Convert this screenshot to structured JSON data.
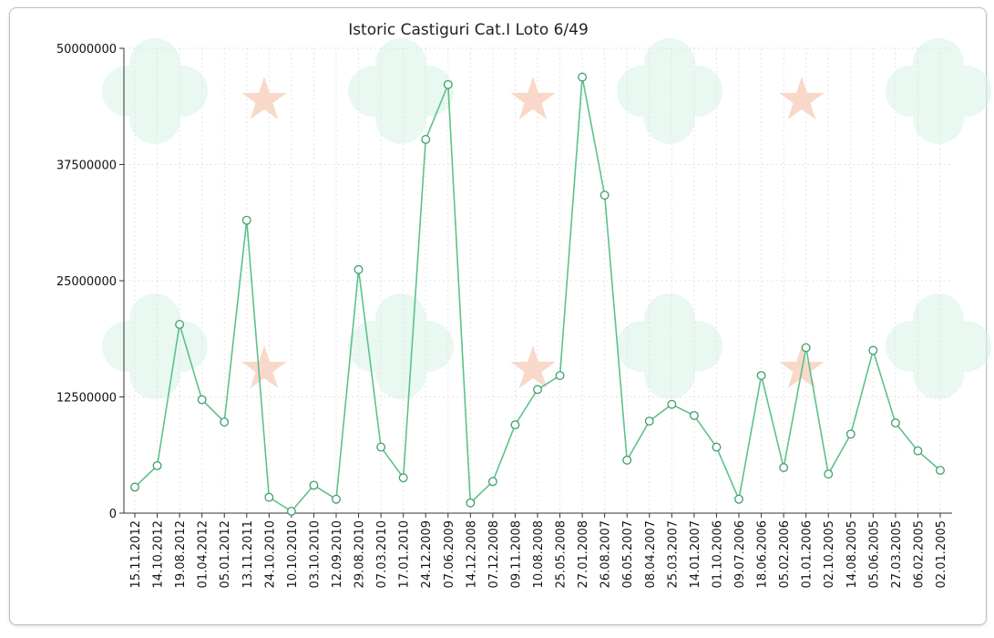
{
  "chart_data": {
    "type": "line",
    "title": "Istoric Castiguri Cat.I Loto 6/49",
    "xlabel": "",
    "ylabel": "",
    "ylim": [
      0,
      50000000
    ],
    "yticks": [
      "0",
      "12500000",
      "25000000",
      "37500000",
      "50000000"
    ],
    "grid": true,
    "colors": {
      "line": "#5cc28a",
      "marker": "#3f9f6a",
      "axis": "#333333",
      "grid": "#e3e3e3",
      "decor_flower": "#d8f3e6",
      "decor_star": "#f6c3ae"
    },
    "series": [
      {
        "values": [
          2800000,
          5100000,
          20300000,
          12200000,
          9800000,
          31500000,
          1700000,
          200000,
          3000000,
          1500000,
          26200000,
          7100000,
          3800000,
          40200000,
          46100000,
          1100000,
          3400000,
          9500000,
          13300000,
          14800000,
          46900000,
          34200000,
          5700000,
          9900000,
          11700000,
          10500000,
          7100000,
          1500000,
          14800000,
          4900000,
          17800000,
          4200000,
          8500000,
          17500000,
          9700000,
          6700000,
          4600000
        ]
      }
    ],
    "categories": [
      "15.11.2012",
      "14.10.2012",
      "19.08.2012",
      "01.04.2012",
      "05.01.2012",
      "13.11.2011",
      "24.10.2010",
      "10.10.2010",
      "03.10.2010",
      "12.09.2010",
      "29.08.2010",
      "07.03.2010",
      "17.01.2010",
      "24.12.2009",
      "07.06.2009",
      "14.12.2008",
      "07.12.2008",
      "09.11.2008",
      "10.08.2008",
      "25.05.2008",
      "27.01.2008",
      "26.08.2007",
      "06.05.2007",
      "08.04.2007",
      "25.03.2007",
      "14.01.2007",
      "01.10.2006",
      "09.07.2006",
      "18.06.2006",
      "05.02.2006",
      "01.01.2006",
      "02.10.2005",
      "14.08.2005",
      "05.06.2005",
      "27.03.2005",
      "06.02.2005",
      "02.01.2005"
    ]
  }
}
